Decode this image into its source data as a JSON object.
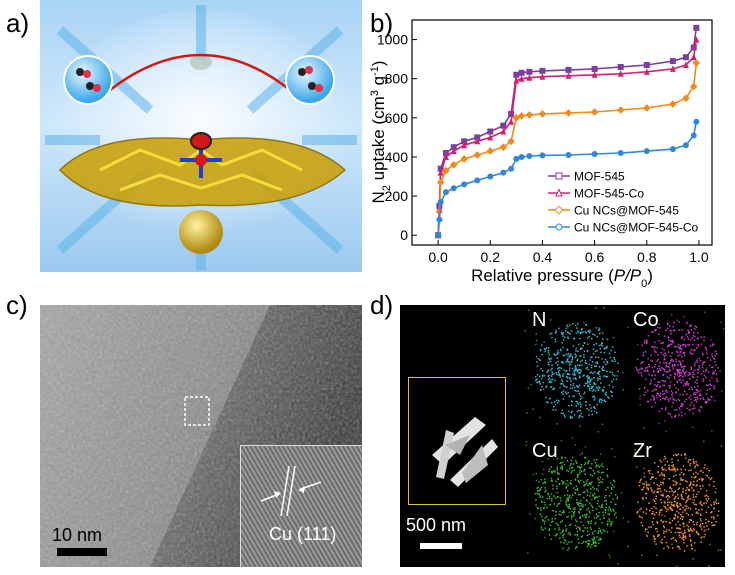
{
  "figure": {
    "panel_labels": {
      "a": "a)",
      "b": "b)",
      "c": "c)",
      "d": "d)"
    },
    "panel_c": {
      "scale_bar": "10 nm",
      "inset_label": "Cu (111)"
    },
    "panel_d": {
      "scale_bar": "500 nm",
      "maps": [
        "N",
        "Co",
        "Cu",
        "Zr"
      ]
    },
    "map_colors": {
      "N": "#39b5c8",
      "Co": "#c83cc8",
      "Cu": "#3cb43c",
      "Zr": "#e8901e"
    }
  },
  "chart_data": {
    "type": "line",
    "xlabel_text": "Relative pressure (",
    "xlabel_var": "P/P",
    "xlabel_sub": "0",
    "xlabel_end": ")",
    "ylabel_main": "N",
    "ylabel_sub": "2",
    "ylabel_rest": " uptake (cm",
    "ylabel_sup1": "3",
    "ylabel_mid": " g",
    "ylabel_sup2": "-1",
    "ylabel_end": ")",
    "xlim": [
      -0.1,
      1.05
    ],
    "ylim": [
      -50,
      1100
    ],
    "xticks": [
      "0.0",
      "0.2",
      "0.4",
      "0.6",
      "0.8",
      "1.0"
    ],
    "yticks": [
      "0",
      "200",
      "400",
      "600",
      "800",
      "1000"
    ],
    "legend_position": "bottom-right",
    "series": [
      {
        "name": "MOF-545",
        "color": "#7b3fa0",
        "marker": "square",
        "x": [
          0.0,
          0.005,
          0.01,
          0.03,
          0.06,
          0.1,
          0.15,
          0.2,
          0.25,
          0.28,
          0.3,
          0.32,
          0.35,
          0.4,
          0.5,
          0.6,
          0.7,
          0.8,
          0.9,
          0.95,
          0.98,
          0.99
        ],
        "y": [
          0,
          150,
          340,
          420,
          450,
          480,
          500,
          530,
          560,
          620,
          820,
          830,
          835,
          840,
          845,
          850,
          860,
          870,
          890,
          910,
          960,
          1060
        ]
      },
      {
        "name": "MOF-545-Co",
        "color": "#d0226e",
        "marker": "triangle",
        "x": [
          0.0,
          0.005,
          0.01,
          0.03,
          0.06,
          0.1,
          0.15,
          0.2,
          0.25,
          0.28,
          0.3,
          0.32,
          0.35,
          0.4,
          0.5,
          0.6,
          0.7,
          0.8,
          0.9,
          0.95,
          0.98,
          0.99
        ],
        "y": [
          0,
          140,
          320,
          400,
          430,
          460,
          480,
          500,
          530,
          580,
          790,
          800,
          805,
          810,
          815,
          820,
          825,
          835,
          850,
          870,
          910,
          1000
        ]
      },
      {
        "name": "Cu NCs@MOF-545",
        "color": "#f08a1a",
        "marker": "diamond",
        "x": [
          0.0,
          0.005,
          0.01,
          0.03,
          0.06,
          0.1,
          0.15,
          0.2,
          0.25,
          0.28,
          0.3,
          0.32,
          0.35,
          0.4,
          0.5,
          0.6,
          0.7,
          0.8,
          0.9,
          0.95,
          0.98,
          0.99
        ],
        "y": [
          0,
          120,
          270,
          330,
          360,
          390,
          410,
          430,
          450,
          480,
          600,
          610,
          615,
          620,
          625,
          630,
          640,
          650,
          670,
          700,
          760,
          880
        ]
      },
      {
        "name": "Cu NCs@MOF-545-Co",
        "color": "#2f86e0",
        "marker": "circle",
        "x": [
          0.0,
          0.005,
          0.01,
          0.03,
          0.06,
          0.1,
          0.15,
          0.2,
          0.25,
          0.28,
          0.3,
          0.32,
          0.35,
          0.4,
          0.5,
          0.6,
          0.7,
          0.8,
          0.9,
          0.95,
          0.98,
          0.99
        ],
        "y": [
          0,
          80,
          170,
          220,
          240,
          260,
          280,
          300,
          320,
          340,
          390,
          400,
          405,
          408,
          410,
          415,
          420,
          430,
          440,
          460,
          510,
          580
        ]
      }
    ]
  }
}
